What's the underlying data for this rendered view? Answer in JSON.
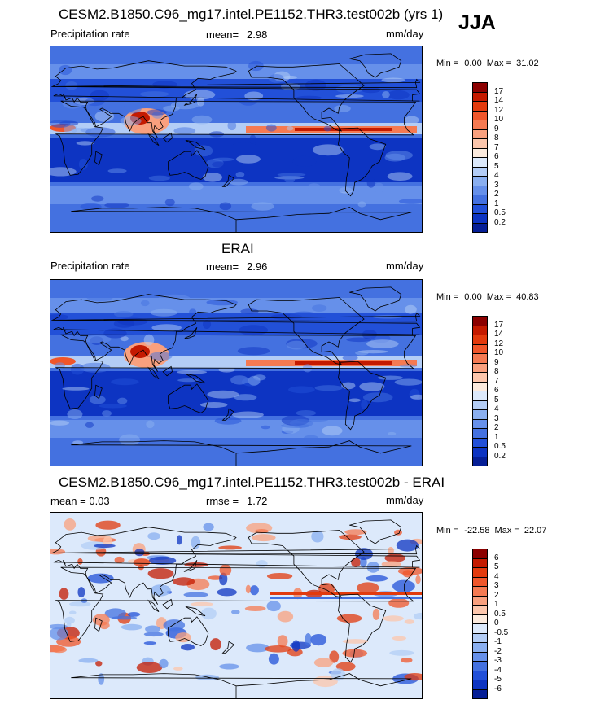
{
  "season": "JJA",
  "panels": [
    {
      "title": "CESM2.B1850.C96_mg17.intel.PE1152.THR3.test002b (yrs 1)",
      "left_label": "Precipitation rate",
      "stat_label": "mean=",
      "stat_value": "2.98",
      "units": "mm/day",
      "min_label": "Min =",
      "min_value": "0.00",
      "max_label": "Max =",
      "max_value": "31.02",
      "mean_value": 2.98,
      "colorbar_labels": [
        "17",
        "14",
        "12",
        "10",
        "9",
        "8",
        "7",
        "6",
        "5",
        "4",
        "3",
        "2",
        "1",
        "0.5",
        "0.2"
      ],
      "colors": [
        "#8b0000",
        "#c41a00",
        "#e23a0d",
        "#f0562a",
        "#f57a52",
        "#f9a07e",
        "#fcc6ac",
        "#fbeadd",
        "#dce9fb",
        "#b3cdf6",
        "#8aaff0",
        "#6690ea",
        "#4471e0",
        "#2250d8",
        "#0d34c2",
        "#061f96"
      ]
    },
    {
      "title": "ERAI",
      "left_label": "Precipitation rate",
      "stat_label": "mean=",
      "stat_value": "2.96",
      "units": "mm/day",
      "min_label": "Min =",
      "min_value": "0.00",
      "max_label": "Max =",
      "max_value": "40.83",
      "mean_value": 2.96,
      "colorbar_labels": [
        "17",
        "14",
        "12",
        "10",
        "9",
        "8",
        "7",
        "6",
        "5",
        "4",
        "3",
        "2",
        "1",
        "0.5",
        "0.2"
      ],
      "colors": [
        "#8b0000",
        "#c41a00",
        "#e23a0d",
        "#f0562a",
        "#f57a52",
        "#f9a07e",
        "#fcc6ac",
        "#fbeadd",
        "#dce9fb",
        "#b3cdf6",
        "#8aaff0",
        "#6690ea",
        "#4471e0",
        "#2250d8",
        "#0d34c2",
        "#061f96"
      ]
    },
    {
      "title": "CESM2.B1850.C96_mg17.intel.PE1152.THR3.test002b - ERAI",
      "left_label": "mean =   0.03",
      "stat_label": "rmse =",
      "stat_value": "1.72",
      "units": "mm/day",
      "min_label": "Min =",
      "min_value": "-22.58",
      "max_label": "Max =",
      "max_value": "22.07",
      "mean_value": 0.03,
      "rmse_value": 1.72,
      "colorbar_labels": [
        "6",
        "5",
        "4",
        "3",
        "2",
        "1",
        "0.5",
        "0",
        "-0.5",
        "-1",
        "-2",
        "-3",
        "-4",
        "-5",
        "-6"
      ],
      "colors": [
        "#8b0000",
        "#c41a00",
        "#e23a0d",
        "#f0562a",
        "#f57a52",
        "#f9a07e",
        "#fcc6ac",
        "#fbeadd",
        "#dce9fb",
        "#b3cdf6",
        "#8aaff0",
        "#6690ea",
        "#4471e0",
        "#2250d8",
        "#0d34c2",
        "#061f96"
      ]
    }
  ],
  "chart_data": [
    {
      "type": "heatmap",
      "title": "CESM2.B1850.C96_mg17.intel.PE1152.THR3.test002b (yrs 1)",
      "variable": "Precipitation rate",
      "units": "mm/day",
      "mean": 2.98,
      "min": 0.0,
      "max": 31.02,
      "levels": [
        0.2,
        0.5,
        1,
        2,
        3,
        4,
        5,
        6,
        7,
        8,
        9,
        10,
        12,
        14,
        17
      ]
    },
    {
      "type": "heatmap",
      "title": "ERAI",
      "variable": "Precipitation rate",
      "units": "mm/day",
      "mean": 2.96,
      "min": 0.0,
      "max": 40.83,
      "levels": [
        0.2,
        0.5,
        1,
        2,
        3,
        4,
        5,
        6,
        7,
        8,
        9,
        10,
        12,
        14,
        17
      ]
    },
    {
      "type": "heatmap",
      "title": "CESM2.B1850.C96_mg17.intel.PE1152.THR3.test002b - ERAI",
      "units": "mm/day",
      "mean": 0.03,
      "rmse": 1.72,
      "min": -22.58,
      "max": 22.07,
      "levels": [
        -6,
        -5,
        -4,
        -3,
        -2,
        -1,
        -0.5,
        0,
        0.5,
        1,
        2,
        3,
        4,
        5,
        6
      ]
    }
  ]
}
